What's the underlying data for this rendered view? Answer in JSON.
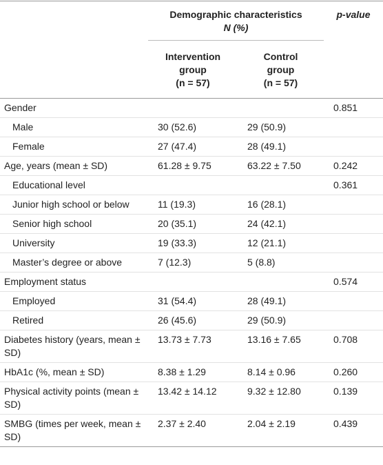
{
  "table": {
    "header": {
      "group_title": [
        "Demographic characteristics",
        "N (%)"
      ],
      "p_value": "p-value",
      "columns": [
        [
          "Intervention",
          "group",
          "(n = 57)"
        ],
        [
          "Control",
          "group",
          "(n = 57)"
        ]
      ]
    },
    "rows": [
      [
        "Gender",
        null,
        null,
        "0.851"
      ],
      [
        "Male",
        "30 (52.6)",
        "29 (50.9)",
        null
      ],
      [
        "Female",
        "27 (47.4)",
        "28 (49.1)",
        null
      ],
      [
        "Age, years (mean ± SD)",
        "61.28 ± 9.75",
        "63.22 ± 7.50",
        "0.242"
      ],
      [
        "Educational level",
        null,
        null,
        "0.361"
      ],
      [
        "Junior high school or below",
        "11 (19.3)",
        "16 (28.1)",
        null
      ],
      [
        "Senior high school",
        "20 (35.1)",
        "24 (42.1)",
        null
      ],
      [
        "University",
        "19 (33.3)",
        "12 (21.1)",
        null
      ],
      [
        "Master’s degree or above",
        "7 (12.3)",
        "5 (8.8)",
        null
      ],
      [
        "Employment status",
        null,
        null,
        "0.574"
      ],
      [
        "Employed",
        "31 (54.4)",
        "28 (49.1)",
        null
      ],
      [
        "Retired",
        "26 (45.6)",
        "29 (50.9)",
        null
      ],
      [
        "Diabetes history (years, mean ± SD)",
        "13.73 ± 7.73",
        "13.16 ± 7.65",
        "0.708"
      ],
      [
        "HbA1c (%, mean ± SD)",
        "8.38 ± 1.29",
        "8.14 ± 0.96",
        "0.260"
      ],
      [
        "Physical activity points (mean ± SD)",
        "13.42 ± 14.12",
        "9.32 ± 12.80",
        "0.139"
      ],
      [
        "SMBG (times per week, mean ± SD)",
        "2.37 ± 2.40",
        "2.04 ± 2.19",
        "0.439"
      ]
    ]
  }
}
